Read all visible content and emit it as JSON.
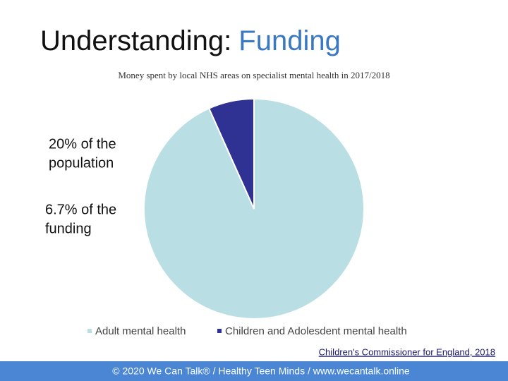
{
  "chart_data": {
    "type": "pie",
    "title": [
      "Understanding:",
      "Funding"
    ],
    "subtitle": "Money spent by local NHS areas on specialist mental health in 2017/2018",
    "categories": [
      "Adult mental health",
      "Children and Adolesdent mental health"
    ],
    "values": [
      93.3,
      6.7
    ],
    "colors": [
      "#b9dfe4",
      "#2f3292"
    ],
    "annotations": [
      [
        "20% of the",
        "population"
      ],
      [
        "6.7% of the",
        "funding"
      ]
    ],
    "source": "Children's Commissioner for England, 2018",
    "footer": "© 2020 We Can Talk® / Healthy Teen Minds / www.wecantalk.online"
  }
}
